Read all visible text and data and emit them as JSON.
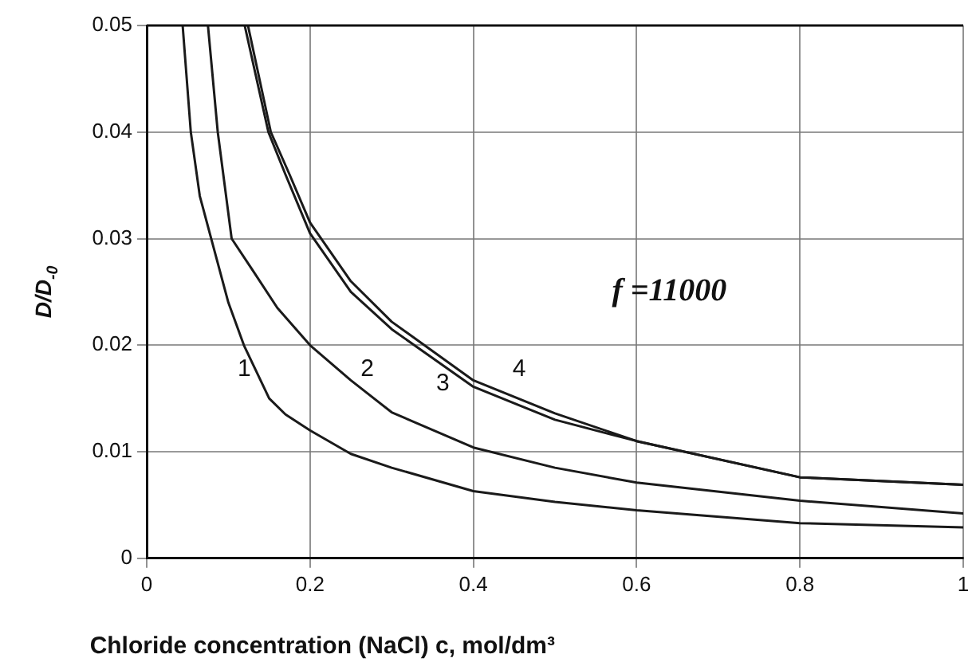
{
  "chart_data": {
    "type": "line",
    "xlabel": "Chloride concentration (NaCl) c, mol/dm³",
    "ylabel": "D/D$_{-0}$",
    "series": [
      {
        "name": "1",
        "color": "#1a1a1a",
        "x": [
          0.044,
          0.054,
          0.065,
          0.079,
          0.1,
          0.119,
          0.15,
          0.17,
          0.2,
          0.25,
          0.3,
          0.4,
          0.5,
          0.6,
          0.8,
          1
        ],
        "values": [
          0.05,
          0.04,
          0.034,
          0.03,
          0.024,
          0.02,
          0.015,
          0.0135,
          0.012,
          0.0098,
          0.0085,
          0.0063,
          0.0053,
          0.0045,
          0.0033,
          0.0029
        ]
      },
      {
        "name": "2",
        "color": "#1a1a1a",
        "x": [
          0.075,
          0.087,
          0.104,
          0.13,
          0.16,
          0.2,
          0.25,
          0.3,
          0.4,
          0.5,
          0.6,
          0.8,
          1
        ],
        "values": [
          0.05,
          0.04,
          0.03,
          0.027,
          0.0235,
          0.02,
          0.0167,
          0.0137,
          0.0104,
          0.0085,
          0.0071,
          0.0054,
          0.0042
        ]
      },
      {
        "name": "3",
        "color": "#1a1a1a",
        "x": [
          0.12,
          0.149,
          0.17,
          0.2,
          0.25,
          0.3,
          0.4,
          0.5,
          0.6,
          0.8,
          1
        ],
        "values": [
          0.05,
          0.04,
          0.036,
          0.0305,
          0.025,
          0.0215,
          0.0161,
          0.013,
          0.011,
          0.0076,
          0.0069
        ]
      },
      {
        "name": "4",
        "color": "#1a1a1a",
        "x": [
          0.124,
          0.152,
          0.175,
          0.2,
          0.25,
          0.3,
          0.4,
          0.5,
          0.6,
          0.8,
          1
        ],
        "values": [
          0.05,
          0.04,
          0.036,
          0.0315,
          0.026,
          0.0222,
          0.0167,
          0.0136,
          0.011,
          0.0076,
          0.0069
        ]
      }
    ],
    "annotations": [
      "f =11000"
    ],
    "xlim": [
      0,
      1
    ],
    "xticks": [
      0,
      0.2,
      0.4,
      0.6,
      0.8,
      1
    ],
    "ylim": [
      0,
      0.05
    ],
    "yticks": [
      0,
      0.01,
      0.02,
      0.03,
      0.04,
      0.05
    ],
    "grid": true,
    "legend": false,
    "marker": "none",
    "line_style": "solid"
  }
}
